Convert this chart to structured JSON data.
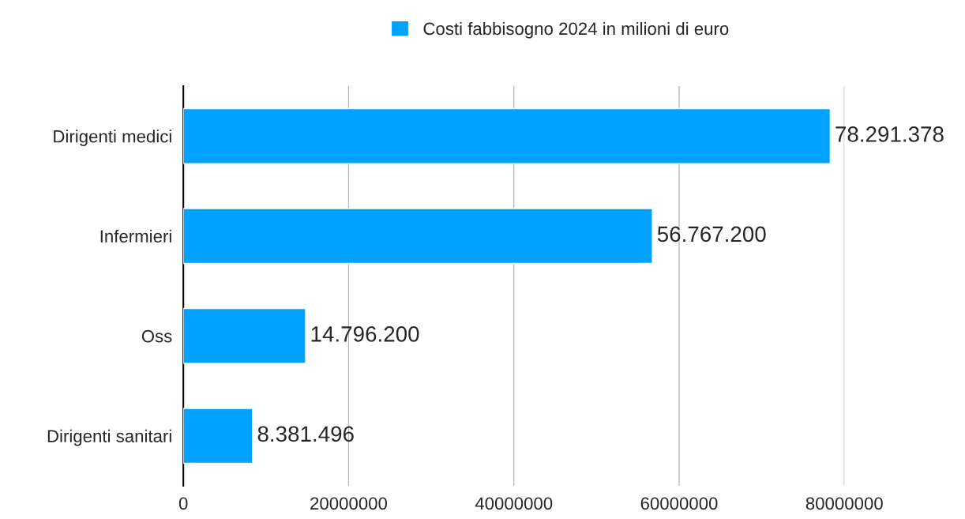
{
  "chart_data": {
    "type": "bar",
    "orientation": "horizontal",
    "categories": [
      "Dirigenti medici",
      "Infermieri",
      "Oss",
      "Dirigenti sanitari"
    ],
    "series": [
      {
        "name": "Costi fabbisogno 2024 in milioni di euro",
        "color": "#00a2ff",
        "values": [
          78291378,
          56767200,
          14796200,
          8381496
        ],
        "value_labels": [
          "78.291.378",
          "56.767.200",
          "14.796.200",
          "8.381.496"
        ]
      }
    ],
    "xlim": [
      0,
      80000000
    ],
    "xticks": [
      0,
      20000000,
      40000000,
      60000000,
      80000000
    ],
    "grid": "x",
    "legend": "top"
  }
}
